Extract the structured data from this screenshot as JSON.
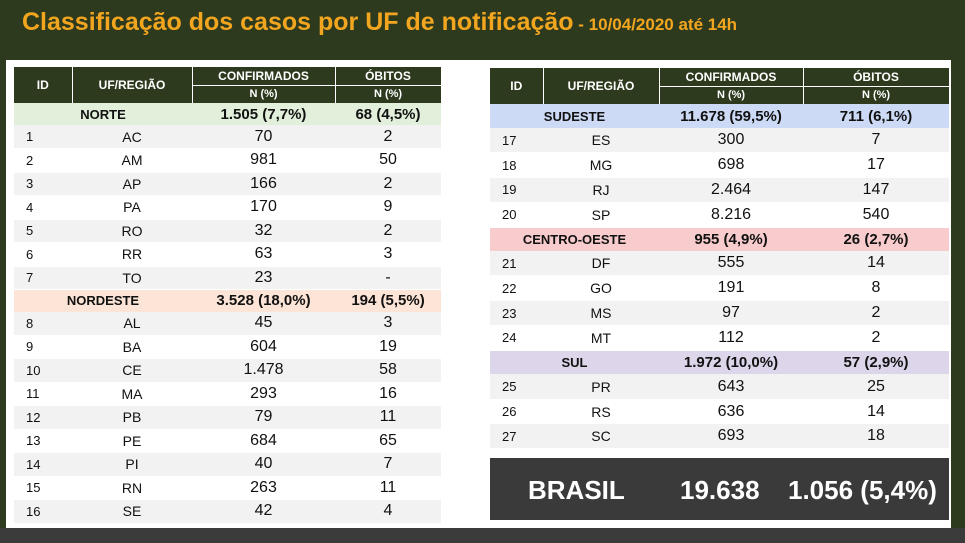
{
  "title": "Classificação dos casos por UF de notificação",
  "subtitle": " - 10/04/2020 até 14h",
  "headers": {
    "id": "ID",
    "uf": "UF/REGIÃO",
    "confirmados": "CONFIRMADOS",
    "obitos": "ÓBITOS",
    "n_pct": "N (%)"
  },
  "colors": {
    "norte": "#e2efda",
    "nordeste": "#fce4d6",
    "sudeste": "#ccdaf5",
    "centro_oeste": "#f8cbcd",
    "sul": "#ddd5ea",
    "header": "#2d3a1e",
    "title": "#f2a51e"
  },
  "left_table": {
    "norte": {
      "name": "NORTE",
      "confirmados": "1.505 (7,7%)",
      "obitos": "68 (4,5%)",
      "states": [
        {
          "id": "1",
          "uf": "AC",
          "confirmados": "70",
          "obitos": "2"
        },
        {
          "id": "2",
          "uf": "AM",
          "confirmados": "981",
          "obitos": "50"
        },
        {
          "id": "3",
          "uf": "AP",
          "confirmados": "166",
          "obitos": "2"
        },
        {
          "id": "4",
          "uf": "PA",
          "confirmados": "170",
          "obitos": "9"
        },
        {
          "id": "5",
          "uf": "RO",
          "confirmados": "32",
          "obitos": "2"
        },
        {
          "id": "6",
          "uf": "RR",
          "confirmados": "63",
          "obitos": "3"
        },
        {
          "id": "7",
          "uf": "TO",
          "confirmados": "23",
          "obitos": "-"
        }
      ]
    },
    "nordeste": {
      "name": "NORDESTE",
      "confirmados": "3.528 (18,0%)",
      "obitos": "194 (5,5%)",
      "states": [
        {
          "id": "8",
          "uf": "AL",
          "confirmados": "45",
          "obitos": "3"
        },
        {
          "id": "9",
          "uf": "BA",
          "confirmados": "604",
          "obitos": "19"
        },
        {
          "id": "10",
          "uf": "CE",
          "confirmados": "1.478",
          "obitos": "58"
        },
        {
          "id": "11",
          "uf": "MA",
          "confirmados": "293",
          "obitos": "16"
        },
        {
          "id": "12",
          "uf": "PB",
          "confirmados": "79",
          "obitos": "11"
        },
        {
          "id": "13",
          "uf": "PE",
          "confirmados": "684",
          "obitos": "65"
        },
        {
          "id": "14",
          "uf": "PI",
          "confirmados": "40",
          "obitos": "7"
        },
        {
          "id": "15",
          "uf": "RN",
          "confirmados": "263",
          "obitos": "11"
        },
        {
          "id": "16",
          "uf": "SE",
          "confirmados": "42",
          "obitos": "4"
        }
      ]
    }
  },
  "right_table": {
    "sudeste": {
      "name": "SUDESTE",
      "confirmados": "11.678 (59,5%)",
      "obitos": "711 (6,1%)",
      "states": [
        {
          "id": "17",
          "uf": "ES",
          "confirmados": "300",
          "obitos": "7"
        },
        {
          "id": "18",
          "uf": "MG",
          "confirmados": "698",
          "obitos": "17"
        },
        {
          "id": "19",
          "uf": "RJ",
          "confirmados": "2.464",
          "obitos": "147"
        },
        {
          "id": "20",
          "uf": "SP",
          "confirmados": "8.216",
          "obitos": "540"
        }
      ]
    },
    "centro_oeste": {
      "name": "CENTRO-OESTE",
      "confirmados": "955 (4,9%)",
      "obitos": "26 (2,7%)",
      "states": [
        {
          "id": "21",
          "uf": "DF",
          "confirmados": "555",
          "obitos": "14"
        },
        {
          "id": "22",
          "uf": "GO",
          "confirmados": "191",
          "obitos": "8"
        },
        {
          "id": "23",
          "uf": "MS",
          "confirmados": "97",
          "obitos": "2"
        },
        {
          "id": "24",
          "uf": "MT",
          "confirmados": "112",
          "obitos": "2"
        }
      ]
    },
    "sul": {
      "name": "SUL",
      "confirmados": "1.972 (10,0%)",
      "obitos": "57 (2,9%)",
      "states": [
        {
          "id": "25",
          "uf": "PR",
          "confirmados": "643",
          "obitos": "25"
        },
        {
          "id": "26",
          "uf": "RS",
          "confirmados": "636",
          "obitos": "14"
        },
        {
          "id": "27",
          "uf": "SC",
          "confirmados": "693",
          "obitos": "18"
        }
      ]
    }
  },
  "brasil": {
    "label": "BRASIL",
    "confirmados": "19.638",
    "obitos": "1.056 (5,4%)"
  }
}
